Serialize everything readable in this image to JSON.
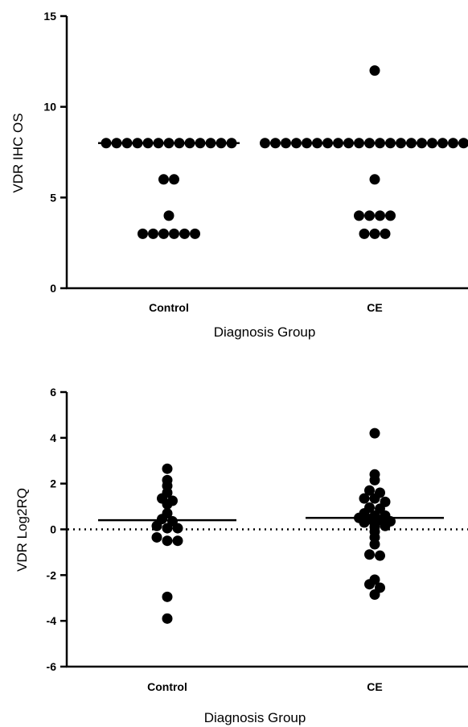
{
  "chart_data": [
    {
      "type": "scatter",
      "title": "",
      "xlabel": "Diagnosis Group",
      "ylabel": "VDR IHC OS",
      "ylim": [
        0,
        15
      ],
      "yticks": [
        "0",
        "5",
        "10",
        "15"
      ],
      "categories": [
        "Control",
        "CE"
      ],
      "grid": false,
      "series": [
        {
          "category": "Control",
          "mean": 8,
          "values": [
            8,
            8,
            8,
            8,
            8,
            8,
            8,
            8,
            8,
            8,
            8,
            8,
            8,
            6,
            6,
            4,
            3,
            3,
            3,
            3,
            3,
            3
          ]
        },
        {
          "category": "CE",
          "mean": 8,
          "values": [
            12,
            8,
            8,
            8,
            8,
            8,
            8,
            8,
            8,
            8,
            8,
            8,
            8,
            8,
            8,
            8,
            8,
            8,
            8,
            8,
            8,
            8,
            8,
            6,
            4,
            4,
            4,
            4,
            3,
            3,
            3
          ]
        }
      ]
    },
    {
      "type": "scatter",
      "title": "",
      "xlabel": "Diagnosis Group",
      "ylabel": "VDR Log2RQ",
      "ylim": [
        -6,
        6
      ],
      "yticks": [
        "-6",
        "-4",
        "-2",
        "0",
        "2",
        "4",
        "6"
      ],
      "categories": [
        "Control",
        "CE"
      ],
      "reference_line_y": 0,
      "grid": false,
      "series": [
        {
          "category": "Control",
          "mean": 0.4,
          "values": [
            2.65,
            2.15,
            1.9,
            1.6,
            1.35,
            1.25,
            1.1,
            0.7,
            0.45,
            0.35,
            0.15,
            0.05,
            0.05,
            -0.35,
            -0.5,
            -0.5,
            -2.95,
            -3.9
          ]
        },
        {
          "category": "CE",
          "mean": 0.5,
          "values": [
            4.2,
            2.4,
            2.15,
            1.7,
            1.6,
            1.35,
            1.35,
            1.2,
            0.95,
            0.9,
            0.7,
            0.6,
            0.6,
            0.5,
            0.45,
            0.4,
            0.35,
            0.3,
            0.25,
            0.15,
            0.1,
            -0.1,
            -0.35,
            -0.65,
            -1.1,
            -1.15,
            -2.2,
            -2.4,
            -2.55,
            -2.85
          ]
        }
      ]
    }
  ]
}
